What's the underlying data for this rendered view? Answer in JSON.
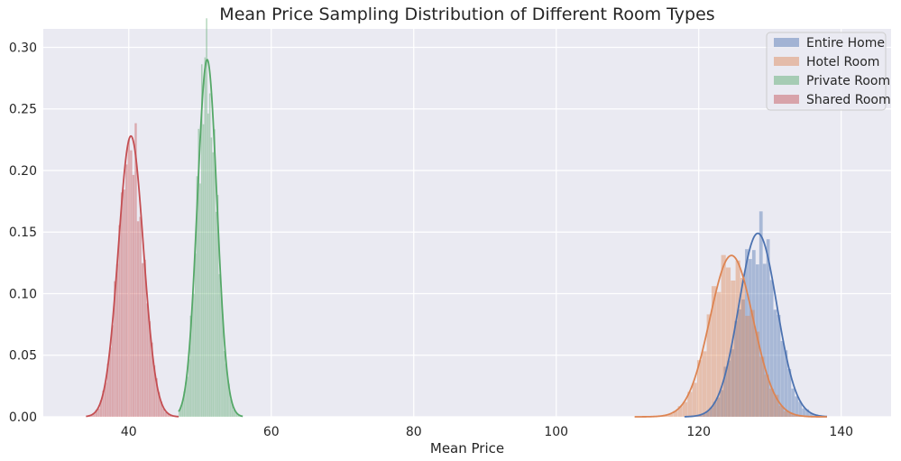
{
  "chart_data": {
    "type": "histogram-kde",
    "title": "Mean Price Sampling Distribution of Different Room Types",
    "xlabel": "Mean Price",
    "ylabel": "",
    "xlim": [
      28,
      147
    ],
    "ylim": [
      0,
      0.315
    ],
    "xticks": [
      40,
      60,
      80,
      100,
      120,
      140
    ],
    "yticks": [
      0.0,
      0.05,
      0.1,
      0.15,
      0.2,
      0.25,
      0.3
    ],
    "ytick_labels": [
      "0.00",
      "0.05",
      "0.10",
      "0.15",
      "0.20",
      "0.25",
      "0.30"
    ],
    "grid": true,
    "legend_position": "top-right",
    "series": [
      {
        "name": "Entire Home",
        "color": "#4c72b0",
        "mean": 128.3,
        "peak_density": 0.149,
        "range": [
          118,
          138
        ]
      },
      {
        "name": "Hotel Room",
        "color": "#dd8452",
        "mean": 124.6,
        "peak_density": 0.131,
        "range": [
          111,
          138
        ]
      },
      {
        "name": "Private Room",
        "color": "#55a868",
        "mean": 51.0,
        "peak_density": 0.29,
        "range": [
          47,
          56
        ]
      },
      {
        "name": "Shared Room",
        "color": "#c44e52",
        "mean": 40.3,
        "peak_density": 0.228,
        "range": [
          34,
          47
        ]
      }
    ]
  }
}
